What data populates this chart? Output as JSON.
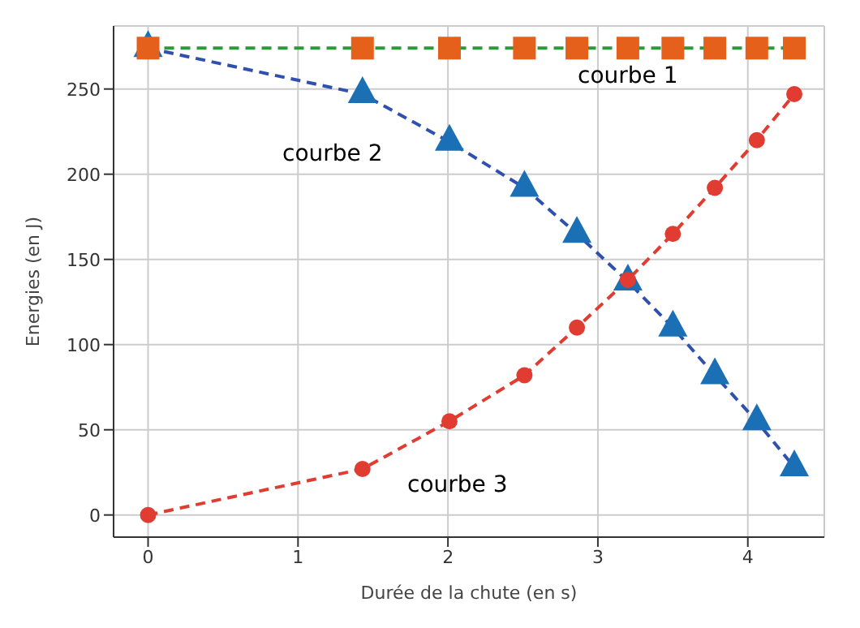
{
  "chart_data": {
    "type": "line",
    "xlabel": "Durée de la chute (en s)",
    "ylabel": "Energies (en J)",
    "x": [
      0,
      1.43,
      2.01,
      2.51,
      2.86,
      3.2,
      3.5,
      3.78,
      4.06,
      4.31
    ],
    "series": [
      {
        "color": "#3050b0",
        "colors": [
          "#1a6fb5",
          "#1a6fb5",
          "#1a6fb5",
          "#1a6fb5",
          "#1a6fb5",
          "#1a6fb5",
          "#1a6fb5",
          "#1a6fb5",
          "#1a6fb5",
          "#1a6fb5"
        ],
        "marker": "triangle",
        "values": [
          274,
          247,
          219,
          192,
          165,
          137,
          110,
          82,
          55,
          28
        ]
      },
      {
        "color": "#e03c31",
        "marker": "circle",
        "values": [
          0,
          27,
          55,
          82,
          110,
          138,
          165,
          192,
          220,
          247
        ]
      },
      {
        "color": "#2a9a3a",
        "colors": [
          "#e5601a",
          "#e5601a",
          "#e5601a",
          "#e5601a",
          "#e5601a",
          "#e5601a",
          "#e5601a",
          "#e5601a",
          "#e5601a",
          "#e5601a"
        ],
        "marker": "square",
        "values": [
          274,
          274,
          274,
          274,
          274,
          274,
          274,
          274,
          274,
          274
        ]
      }
    ],
    "xlim": [
      -0.23,
      4.51
    ],
    "xticks": [
      0,
      1,
      2,
      3,
      4
    ],
    "ylim": [
      -13,
      287
    ],
    "yticks": [
      0,
      50,
      100,
      150,
      200,
      250
    ],
    "grid": true,
    "line_style": "dashed",
    "annotations": [
      "courbe 1",
      "courbe 2",
      "courbe 3"
    ]
  }
}
